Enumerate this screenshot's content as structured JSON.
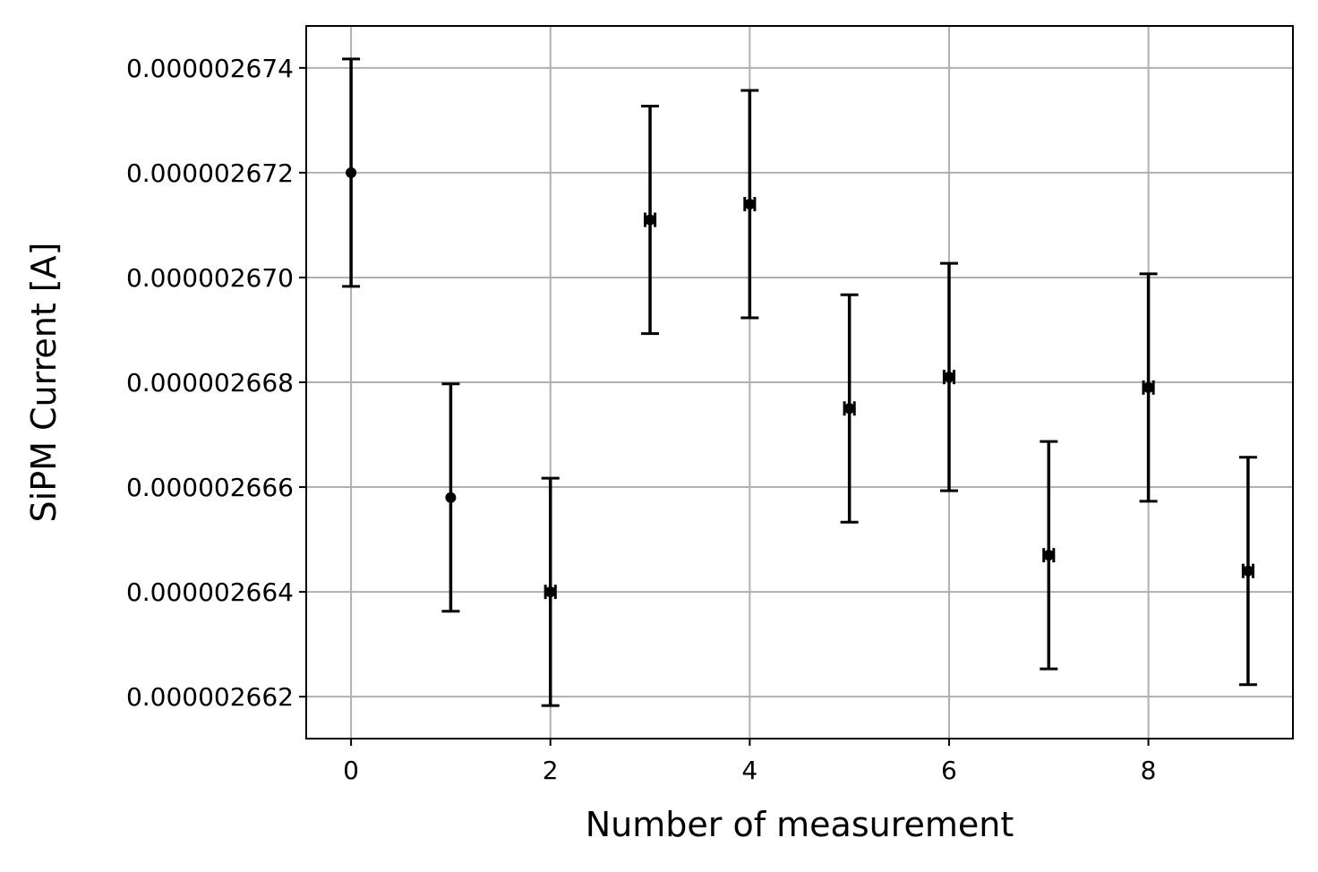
{
  "chart_data": {
    "type": "scatter",
    "title": "",
    "xlabel": "Number of measurement",
    "ylabel": "SiPM Current [A]",
    "xlim": [
      -0.45,
      9.45
    ],
    "ylim": [
      2.6612e-06,
      2.6748e-06
    ],
    "grid": true,
    "x_ticks": [
      0,
      2,
      4,
      6,
      8
    ],
    "x_tick_labels": [
      "0",
      "2",
      "4",
      "6",
      "8"
    ],
    "y_ticks": [
      2.662e-06,
      2.664e-06,
      2.666e-06,
      2.668e-06,
      2.67e-06,
      2.672e-06,
      2.674e-06
    ],
    "y_tick_labels": [
      "0.000002662",
      "0.000002664",
      "0.000002666",
      "0.000002668",
      "0.000002670",
      "0.000002672",
      "0.000002674"
    ],
    "series": [
      {
        "color": "#000000",
        "points": [
          {
            "x": 0,
            "y": 2.672e-06,
            "yerr": 2.17e-09,
            "xerr": 0.0
          },
          {
            "x": 1,
            "y": 2.6658e-06,
            "yerr": 2.17e-09,
            "xerr": 0.0
          },
          {
            "x": 2,
            "y": 2.664e-06,
            "yerr": 2.17e-09,
            "xerr": 0.05
          },
          {
            "x": 3,
            "y": 2.6711e-06,
            "yerr": 2.17e-09,
            "xerr": 0.05
          },
          {
            "x": 4,
            "y": 2.6714e-06,
            "yerr": 2.17e-09,
            "xerr": 0.05
          },
          {
            "x": 5,
            "y": 2.6675e-06,
            "yerr": 2.17e-09,
            "xerr": 0.05
          },
          {
            "x": 6,
            "y": 2.6681e-06,
            "yerr": 2.17e-09,
            "xerr": 0.05
          },
          {
            "x": 7,
            "y": 2.6647e-06,
            "yerr": 2.17e-09,
            "xerr": 0.05
          },
          {
            "x": 8,
            "y": 2.6679e-06,
            "yerr": 2.17e-09,
            "xerr": 0.05
          },
          {
            "x": 9,
            "y": 2.6644e-06,
            "yerr": 2.17e-09,
            "xerr": 0.05
          }
        ]
      }
    ]
  }
}
